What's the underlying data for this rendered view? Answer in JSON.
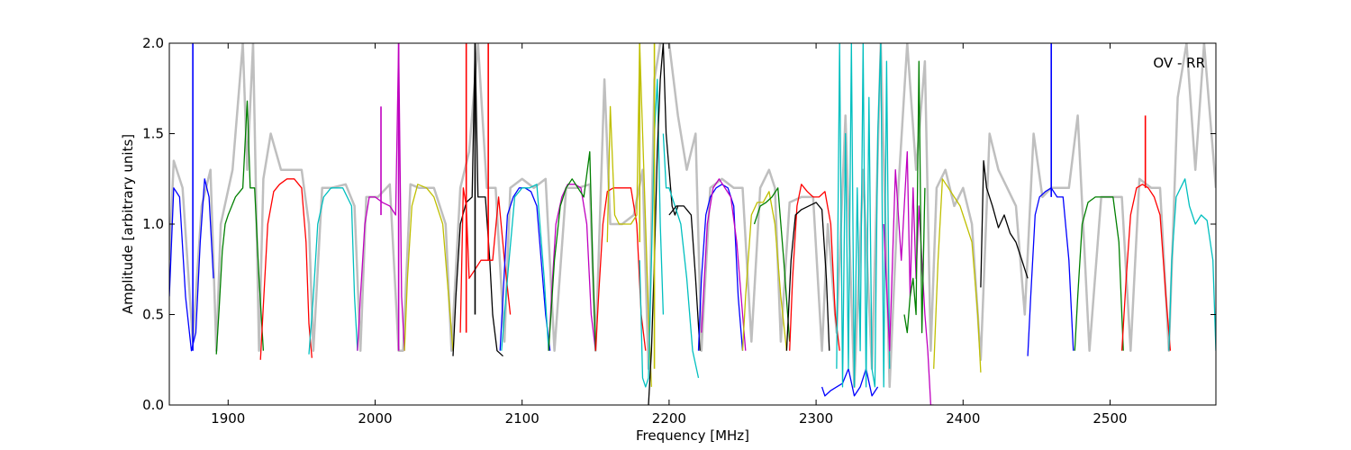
{
  "chart_data": {
    "type": "line",
    "xlabel": "Frequency [MHz]",
    "ylabel": "Amplitude [arbitrary units]",
    "annotation": "OV - RR",
    "xlim": [
      1860,
      2572
    ],
    "ylim": [
      0.0,
      2.0
    ],
    "x_ticks": [
      1900,
      2000,
      2100,
      2200,
      2300,
      2400,
      2500
    ],
    "y_ticks": [
      0.0,
      0.5,
      1.0,
      1.5,
      2.0
    ],
    "x_tick_labels": [
      "1900",
      "2000",
      "2100",
      "2200",
      "2300",
      "2400",
      "2500"
    ],
    "y_tick_labels": [
      "0.0",
      "0.5",
      "1.0",
      "1.5",
      "2.0"
    ],
    "grid": false,
    "legend": "none",
    "colors": {
      "reference": "#bfbfbf",
      "b": "#0000ff",
      "g": "#007f00",
      "r": "#ff0000",
      "c": "#00bfbf",
      "m": "#bf00bf",
      "y": "#bfbf00",
      "k": "#000000"
    },
    "reference": {
      "color": "#bfbfbf",
      "x": [
        1860,
        1863,
        1869,
        1876,
        1882,
        1888,
        1892,
        1895,
        1903,
        1910,
        1913,
        1917,
        1921,
        1924,
        1929,
        1936,
        1944,
        1950,
        1955,
        1958,
        1964,
        1970,
        1980,
        1986,
        1990,
        1994,
        2002,
        2010,
        2016,
        2019,
        2024,
        2030,
        2040,
        2048,
        2052,
        2058,
        2064,
        2070,
        2076,
        2082,
        2088,
        2092,
        2100,
        2108,
        2116,
        2122,
        2130,
        2138,
        2146,
        2150,
        2156,
        2160,
        2168,
        2176,
        2182,
        2186,
        2190,
        2194,
        2200,
        2206,
        2212,
        2218,
        2222,
        2228,
        2236,
        2244,
        2250,
        2256,
        2262,
        2268,
        2272,
        2276,
        2282,
        2290,
        2298,
        2304,
        2308,
        2314,
        2320,
        2326,
        2332,
        2338,
        2344,
        2350,
        2356,
        2362,
        2368,
        2374,
        2378,
        2382,
        2388,
        2394,
        2400,
        2406,
        2412,
        2418,
        2424,
        2430,
        2436,
        2442,
        2448,
        2454,
        2460,
        2466,
        2472,
        2478,
        2486,
        2494,
        2502,
        2508,
        2514,
        2520,
        2528,
        2534,
        2540,
        2546,
        2552,
        2558,
        2564,
        2572
      ],
      "y": [
        0.8,
        1.35,
        1.2,
        0.35,
        1.1,
        1.3,
        0.3,
        1.0,
        1.3,
        2.0,
        1.3,
        2.0,
        0.3,
        1.25,
        1.5,
        1.3,
        1.3,
        1.3,
        1.0,
        0.3,
        1.2,
        1.2,
        1.22,
        1.1,
        0.3,
        1.15,
        1.15,
        1.22,
        0.3,
        0.3,
        1.22,
        1.2,
        1.2,
        1.0,
        0.3,
        1.2,
        1.4,
        2.0,
        1.2,
        1.2,
        0.35,
        1.2,
        1.25,
        1.2,
        1.25,
        0.3,
        1.2,
        1.2,
        1.22,
        0.3,
        1.8,
        1.0,
        1.0,
        1.05,
        1.3,
        0.2,
        1.8,
        2.0,
        2.0,
        1.6,
        1.3,
        1.5,
        0.3,
        1.2,
        1.25,
        1.2,
        1.2,
        0.35,
        1.2,
        1.3,
        1.2,
        0.35,
        1.12,
        1.15,
        1.15,
        0.3,
        1.0,
        0.4,
        1.6,
        0.1,
        1.3,
        0.2,
        2.0,
        0.1,
        1.2,
        2.0,
        1.3,
        1.9,
        0.3,
        1.2,
        1.3,
        1.1,
        1.2,
        1.0,
        0.25,
        1.5,
        1.3,
        1.2,
        1.1,
        0.5,
        1.5,
        1.15,
        1.2,
        1.2,
        1.2,
        1.6,
        0.3,
        1.15,
        1.15,
        1.15,
        0.3,
        1.25,
        1.2,
        1.2,
        0.3,
        1.7,
        2.0,
        1.3,
        2.0,
        1.2
      ]
    },
    "series": [
      {
        "color": "#0000ff",
        "x": [
          1860,
          1863,
          1867,
          1871,
          1875,
          1878,
          1881,
          1884,
          1887,
          1890
        ],
        "y": [
          0.6,
          1.2,
          1.15,
          0.6,
          0.3,
          0.4,
          0.9,
          1.25,
          1.15,
          0.7
        ]
      },
      {
        "color": "#007f00",
        "x": [
          1892,
          1894,
          1896,
          1898,
          1900,
          1905,
          1910,
          1913,
          1915,
          1918,
          1921,
          1924
        ],
        "y": [
          0.28,
          0.55,
          0.85,
          1.0,
          1.05,
          1.15,
          1.2,
          1.68,
          1.2,
          1.2,
          0.7,
          0.3
        ]
      },
      {
        "color": "#ff0000",
        "x": [
          1922,
          1924,
          1927,
          1931,
          1935,
          1940,
          1945,
          1950,
          1953,
          1955,
          1957
        ],
        "y": [
          0.25,
          0.55,
          1.0,
          1.18,
          1.22,
          1.25,
          1.25,
          1.2,
          0.9,
          0.45,
          0.26
        ]
      },
      {
        "color": "#00bfbf",
        "x": [
          1955,
          1958,
          1961,
          1965,
          1970,
          1978,
          1984,
          1986,
          1988
        ],
        "y": [
          0.28,
          0.6,
          1.0,
          1.15,
          1.2,
          1.2,
          1.1,
          0.6,
          0.3
        ]
      },
      {
        "color": "#bf00bf",
        "x": [
          1988,
          1990,
          1993,
          1996,
          2000,
          2005,
          2010,
          2014,
          2016,
          2018,
          2020
        ],
        "y": [
          0.3,
          0.6,
          1.0,
          1.15,
          1.15,
          1.12,
          1.1,
          1.05,
          2.0,
          0.6,
          0.3
        ]
      },
      {
        "color": "#bfbf00",
        "x": [
          2020,
          2022,
          2025,
          2029,
          2035,
          2040,
          2046,
          2050,
          2053
        ],
        "y": [
          0.3,
          0.7,
          1.1,
          1.22,
          1.2,
          1.15,
          1.0,
          0.6,
          0.3
        ]
      },
      {
        "color": "#000000",
        "x": [
          2053,
          2055,
          2058,
          2062,
          2066,
          2068,
          2070,
          2075,
          2078,
          2080,
          2083,
          2087
        ],
        "y": [
          0.27,
          0.6,
          1.0,
          1.12,
          1.15,
          2.0,
          1.15,
          1.15,
          0.8,
          0.5,
          0.3,
          0.27
        ]
      },
      {
        "color": "#ff0000",
        "x": [
          2058,
          2060,
          2062,
          2064,
          2068,
          2072,
          2076,
          2080,
          2084,
          2088,
          2092
        ],
        "y": [
          0.4,
          1.2,
          1.1,
          0.7,
          0.75,
          0.8,
          0.8,
          0.8,
          1.15,
          0.8,
          0.5
        ]
      },
      {
        "color": "#0000ff",
        "x": [
          2085,
          2087,
          2090,
          2094,
          2098,
          2102,
          2106,
          2110,
          2113,
          2116,
          2119
        ],
        "y": [
          0.3,
          0.6,
          1.05,
          1.15,
          1.2,
          1.2,
          1.18,
          1.1,
          0.8,
          0.5,
          0.3
        ]
      },
      {
        "color": "#00bfbf",
        "x": [
          2086,
          2090,
          2095,
          2100,
          2105,
          2110,
          2115,
          2118
        ],
        "y": [
          0.3,
          0.7,
          1.15,
          1.2,
          1.2,
          1.22,
          0.7,
          0.3
        ]
      },
      {
        "color": "#bf00bf",
        "x": [
          2118,
          2120,
          2123,
          2127,
          2131,
          2136,
          2140,
          2144,
          2147,
          2150
        ],
        "y": [
          0.3,
          0.6,
          1.0,
          1.15,
          1.22,
          1.22,
          1.2,
          1.0,
          0.5,
          0.3
        ]
      },
      {
        "color": "#007f00",
        "x": [
          2118,
          2122,
          2126,
          2130,
          2134,
          2138,
          2142,
          2146,
          2148,
          2150
        ],
        "y": [
          0.3,
          0.8,
          1.1,
          1.2,
          1.25,
          1.2,
          1.15,
          1.4,
          0.8,
          0.3
        ]
      },
      {
        "color": "#ff0000",
        "x": [
          2150,
          2152,
          2155,
          2158,
          2162,
          2166,
          2170,
          2174,
          2178,
          2181,
          2184
        ],
        "y": [
          0.3,
          0.6,
          1.0,
          1.18,
          1.2,
          1.2,
          1.2,
          1.2,
          1.0,
          0.5,
          0.3
        ]
      },
      {
        "color": "#bfbf00",
        "x": [
          2158,
          2160,
          2163,
          2166,
          2170,
          2174,
          2178,
          2180,
          2184,
          2186,
          2188
        ],
        "y": [
          0.9,
          1.65,
          1.05,
          1.0,
          1.0,
          1.0,
          1.05,
          2.0,
          1.0,
          0.5,
          0.1
        ]
      },
      {
        "color": "#00bfbf",
        "x": [
          2180,
          2182,
          2184,
          2186,
          2188,
          2190,
          2192,
          2194,
          2196
        ],
        "y": [
          0.8,
          0.15,
          0.1,
          0.15,
          0.8,
          1.5,
          1.8,
          1.0,
          0.5
        ]
      },
      {
        "color": "#000000",
        "x": [
          2186,
          2188,
          2190,
          2192,
          2194,
          2196,
          2198,
          2200,
          2202,
          2204,
          2206
        ],
        "y": [
          0.0,
          0.3,
          0.8,
          1.4,
          1.8,
          2.0,
          1.5,
          1.3,
          1.1,
          1.05,
          1.1
        ]
      },
      {
        "color": "#00bfbf",
        "x": [
          2196,
          2198,
          2200,
          2204,
          2208,
          2212,
          2216,
          2220
        ],
        "y": [
          1.5,
          1.2,
          1.2,
          1.1,
          1.0,
          0.7,
          0.3,
          0.15
        ]
      },
      {
        "color": "#000000",
        "x": [
          2200,
          2205,
          2210,
          2215,
          2218,
          2221
        ],
        "y": [
          1.05,
          1.1,
          1.1,
          1.05,
          0.7,
          0.3
        ]
      },
      {
        "color": "#0000ff",
        "x": [
          2220,
          2222,
          2225,
          2228,
          2232,
          2236,
          2240,
          2244,
          2247,
          2250
        ],
        "y": [
          0.3,
          0.7,
          1.05,
          1.15,
          1.2,
          1.22,
          1.2,
          1.1,
          0.6,
          0.3
        ]
      },
      {
        "color": "#bf00bf",
        "x": [
          2222,
          2226,
          2230,
          2234,
          2238,
          2242,
          2246,
          2250,
          2252
        ],
        "y": [
          0.4,
          1.0,
          1.2,
          1.25,
          1.2,
          1.15,
          0.9,
          0.5,
          0.3
        ]
      },
      {
        "color": "#bfbf00",
        "x": [
          2250,
          2252,
          2256,
          2260,
          2264,
          2268,
          2272,
          2276,
          2280
        ],
        "y": [
          0.3,
          0.6,
          1.05,
          1.12,
          1.12,
          1.18,
          1.0,
          0.6,
          0.3
        ]
      },
      {
        "color": "#007f00",
        "x": [
          2258,
          2262,
          2266,
          2270,
          2274,
          2278,
          2282
        ],
        "y": [
          1.0,
          1.1,
          1.12,
          1.15,
          1.2,
          0.8,
          0.35
        ]
      },
      {
        "color": "#ff0000",
        "x": [
          2282,
          2284,
          2287,
          2290,
          2294,
          2298,
          2302,
          2306,
          2310,
          2313,
          2316
        ],
        "y": [
          0.3,
          0.7,
          1.1,
          1.22,
          1.18,
          1.15,
          1.15,
          1.18,
          1.0,
          0.5,
          0.3
        ]
      },
      {
        "color": "#000000",
        "x": [
          2280,
          2283,
          2286,
          2290,
          2295,
          2300,
          2304,
          2307,
          2309
        ],
        "y": [
          0.3,
          0.8,
          1.05,
          1.08,
          1.1,
          1.12,
          1.08,
          0.7,
          0.3
        ]
      },
      {
        "color": "#0000ff",
        "x": [
          2304,
          2306,
          2310,
          2314,
          2318,
          2322,
          2326,
          2330,
          2334,
          2338,
          2342
        ],
        "y": [
          0.1,
          0.05,
          0.08,
          0.1,
          0.12,
          0.2,
          0.05,
          0.1,
          0.2,
          0.05,
          0.1
        ]
      },
      {
        "color": "#00bfbf",
        "x": [
          2314,
          2316,
          2318,
          2320,
          2322,
          2324,
          2326,
          2328,
          2330,
          2332,
          2334,
          2336,
          2338,
          2340,
          2342,
          2344,
          2346,
          2348,
          2350
        ],
        "y": [
          0.2,
          2.0,
          0.1,
          1.5,
          0.2,
          2.0,
          0.1,
          1.2,
          0.3,
          2.0,
          0.1,
          1.7,
          0.2,
          0.1,
          1.5,
          2.0,
          0.1,
          1.9,
          0.2
        ]
      },
      {
        "color": "#bf00bf",
        "x": [
          2346,
          2350,
          2354,
          2358,
          2362,
          2364,
          2366,
          2368,
          2370,
          2372,
          2374,
          2376,
          2378,
          2380
        ],
        "y": [
          1.0,
          0.3,
          1.3,
          0.8,
          1.4,
          0.6,
          1.2,
          0.7,
          1.1,
          0.8,
          0.5,
          0.3,
          0.0,
          0.0
        ]
      },
      {
        "color": "#007f00",
        "x": [
          2360,
          2362,
          2364,
          2366,
          2368,
          2370,
          2372,
          2374
        ],
        "y": [
          0.5,
          0.4,
          0.6,
          0.7,
          0.5,
          1.9,
          0.4,
          1.2
        ]
      },
      {
        "color": "#bfbf00",
        "x": [
          2380,
          2383,
          2386,
          2390,
          2394,
          2398,
          2402,
          2406,
          2410,
          2412
        ],
        "y": [
          0.2,
          0.8,
          1.25,
          1.2,
          1.15,
          1.1,
          1.0,
          0.9,
          0.5,
          0.18
        ]
      },
      {
        "color": "#000000",
        "x": [
          2412,
          2414,
          2416,
          2420,
          2424,
          2428,
          2432,
          2436,
          2440,
          2444
        ],
        "y": [
          0.65,
          1.35,
          1.2,
          1.1,
          0.98,
          1.05,
          0.95,
          0.9,
          0.8,
          0.7
        ]
      },
      {
        "color": "#0000ff",
        "x": [
          2444,
          2446,
          2449,
          2452,
          2456,
          2460,
          2464,
          2468,
          2472,
          2475
        ],
        "y": [
          0.27,
          0.6,
          1.05,
          1.15,
          1.18,
          1.2,
          1.15,
          1.15,
          0.8,
          0.3
        ]
      },
      {
        "color": "#007f00",
        "x": [
          2476,
          2478,
          2481,
          2485,
          2490,
          2496,
          2502,
          2506,
          2509
        ],
        "y": [
          0.3,
          0.6,
          1.0,
          1.12,
          1.15,
          1.15,
          1.15,
          0.9,
          0.3
        ]
      },
      {
        "color": "#ff0000",
        "x": [
          2508,
          2511,
          2514,
          2518,
          2522,
          2526,
          2530,
          2534,
          2538,
          2541
        ],
        "y": [
          0.3,
          0.7,
          1.05,
          1.2,
          1.22,
          1.2,
          1.15,
          1.05,
          0.6,
          0.3
        ]
      },
      {
        "color": "#00bfbf",
        "x": [
          2540,
          2542,
          2545,
          2548,
          2551,
          2554,
          2558,
          2562,
          2566,
          2570,
          2572
        ],
        "y": [
          0.3,
          0.8,
          1.15,
          1.2,
          1.25,
          1.1,
          1.0,
          1.05,
          1.02,
          0.8,
          0.3
        ]
      }
    ],
    "spikes": [
      {
        "color": "#0000ff",
        "x": 1876,
        "y": [
          0.3,
          2.0
        ]
      },
      {
        "color": "#bf00bf",
        "x": 2004,
        "y": [
          1.05,
          1.65
        ]
      },
      {
        "color": "#bf00bf",
        "x": 2016,
        "y": [
          0.3,
          2.0
        ]
      },
      {
        "color": "#ff0000",
        "x": 2062,
        "y": [
          0.4,
          2.0
        ]
      },
      {
        "color": "#000000",
        "x": 2068,
        "y": [
          0.5,
          2.0
        ]
      },
      {
        "color": "#ff0000",
        "x": 2077,
        "y": [
          0.8,
          2.0
        ]
      },
      {
        "color": "#bfbf00",
        "x": 2180,
        "y": [
          0.9,
          2.0
        ]
      },
      {
        "color": "#bfbf00",
        "x": 2190,
        "y": [
          0.2,
          2.0
        ]
      },
      {
        "color": "#0000ff",
        "x": 2460,
        "y": [
          1.15,
          2.0
        ]
      },
      {
        "color": "#ff0000",
        "x": 2524,
        "y": [
          1.2,
          1.6
        ]
      }
    ]
  }
}
